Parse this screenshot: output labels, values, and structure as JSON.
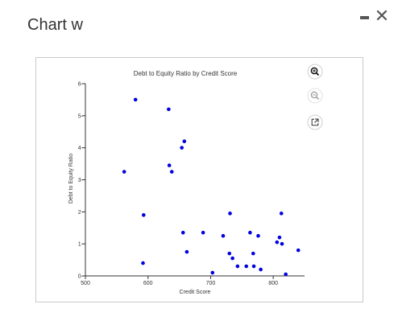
{
  "dialog": {
    "title": "Chart w",
    "minimize_icon": "minimize-icon",
    "close_icon": "close-icon",
    "close_glyph": "✕"
  },
  "chart_controls": [
    {
      "name": "zoom-in",
      "icon": "zoom-in-icon",
      "color": "#111111"
    },
    {
      "name": "zoom-out",
      "icon": "zoom-out-icon",
      "color": "#9a9a9a"
    },
    {
      "name": "popout",
      "icon": "external-link-icon",
      "color": "#333333"
    }
  ],
  "chart_data": {
    "type": "scatter",
    "title": "Debt to Equity Ratio by Credit Score",
    "xlabel": "Credit Score",
    "ylabel": "Debt to Equity Ratio",
    "xlim": [
      500,
      850
    ],
    "ylim": [
      0,
      6
    ],
    "xticks": [
      500,
      600,
      700,
      800
    ],
    "yticks": [
      0,
      1,
      2,
      3,
      4,
      5,
      6
    ],
    "grid": false,
    "point_color": "#0000e0",
    "points": [
      {
        "x": 562,
        "y": 3.25
      },
      {
        "x": 580,
        "y": 5.5
      },
      {
        "x": 592,
        "y": 0.4
      },
      {
        "x": 593,
        "y": 1.9
      },
      {
        "x": 633,
        "y": 5.2
      },
      {
        "x": 634,
        "y": 3.45
      },
      {
        "x": 638,
        "y": 3.25
      },
      {
        "x": 654,
        "y": 4.0
      },
      {
        "x": 656,
        "y": 1.35
      },
      {
        "x": 658,
        "y": 4.2
      },
      {
        "x": 662,
        "y": 0.75
      },
      {
        "x": 688,
        "y": 1.35
      },
      {
        "x": 703,
        "y": 0.1
      },
      {
        "x": 720,
        "y": 1.25
      },
      {
        "x": 730,
        "y": 0.7
      },
      {
        "x": 731,
        "y": 1.95
      },
      {
        "x": 735,
        "y": 0.55
      },
      {
        "x": 743,
        "y": 0.3
      },
      {
        "x": 757,
        "y": 0.3
      },
      {
        "x": 763,
        "y": 1.35
      },
      {
        "x": 768,
        "y": 0.7
      },
      {
        "x": 769,
        "y": 0.3
      },
      {
        "x": 776,
        "y": 1.25
      },
      {
        "x": 780,
        "y": 0.2
      },
      {
        "x": 806,
        "y": 1.05
      },
      {
        "x": 810,
        "y": 1.2
      },
      {
        "x": 813,
        "y": 1.95
      },
      {
        "x": 814,
        "y": 1.0
      },
      {
        "x": 820,
        "y": 0.05
      },
      {
        "x": 840,
        "y": 0.8
      }
    ]
  }
}
